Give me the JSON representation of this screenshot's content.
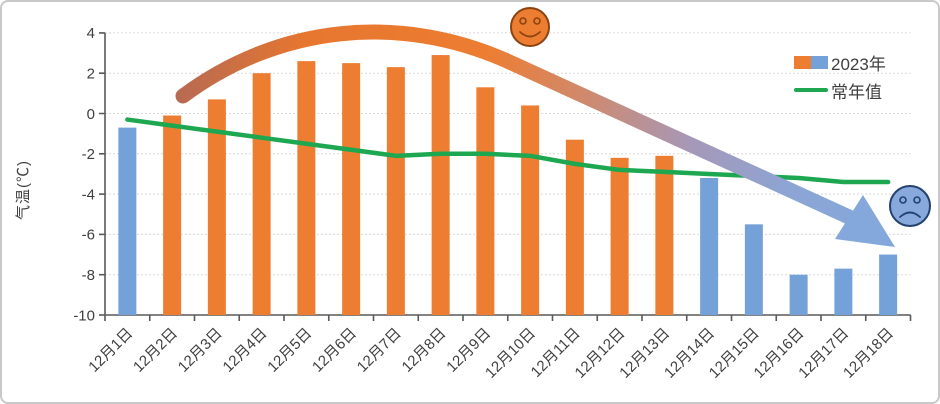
{
  "frame": {
    "background": "#ffffff",
    "border_color": "#c9c9c9"
  },
  "axis": {
    "label_color": "#3f3f3f",
    "line_color": "#595959",
    "grid_color": "#d9d9d9"
  },
  "chart_data": {
    "type": "bar",
    "title": "",
    "ylabel": "气温(℃)",
    "xlabel": "",
    "ylim": [
      -10,
      4
    ],
    "yticks": [
      4,
      2,
      0,
      -2,
      -4,
      -6,
      -8,
      -10
    ],
    "grid": true,
    "legend_position": "top-right",
    "categories": [
      "12月1日",
      "12月2日",
      "12月3日",
      "12月4日",
      "12月5日",
      "12月6日",
      "12月7日",
      "12月8日",
      "12月9日",
      "12月10日",
      "12月11日",
      "12月12日",
      "12月13日",
      "12月14日",
      "12月15日",
      "12月16日",
      "12月17日",
      "12月18日"
    ],
    "series": [
      {
        "name": "2023年",
        "type": "bar",
        "values": [
          -0.7,
          -0.1,
          0.7,
          2.0,
          2.6,
          2.5,
          2.3,
          2.9,
          1.3,
          0.4,
          -1.3,
          -2.2,
          -2.1,
          -3.2,
          -5.5,
          -8.0,
          -7.7,
          -7.0
        ],
        "point_colors": [
          "blue",
          "orange",
          "orange",
          "orange",
          "orange",
          "orange",
          "orange",
          "orange",
          "orange",
          "orange",
          "orange",
          "orange",
          "orange",
          "blue",
          "blue",
          "blue",
          "blue",
          "blue"
        ]
      },
      {
        "name": "常年值",
        "type": "line",
        "values": [
          -0.3,
          -0.6,
          -0.9,
          -1.2,
          -1.5,
          -1.8,
          -2.1,
          -2.0,
          -2.0,
          -2.1,
          -2.5,
          -2.8,
          -2.9,
          -3.0,
          -3.1,
          -3.2,
          -3.4,
          -3.4
        ],
        "color": "#1da750"
      }
    ],
    "colors": {
      "orange": "#ed7d31",
      "blue": "#74a1d8",
      "green": "#1da750"
    },
    "legend": [
      {
        "label": "2023年",
        "swatch": [
          "#ed7d31",
          "#74a1d8"
        ]
      },
      {
        "label": "常年值",
        "swatch": [
          "#1da750"
        ]
      }
    ],
    "annotations": {
      "trend_arrow": {
        "shape": "rise-then-fall arrow",
        "gradient": [
          "#b96b51",
          "#e7762f",
          "#ed7d31",
          "#ce8a70",
          "#a698b8",
          "#8ca5d5",
          "#84a8dc"
        ],
        "gradient_offsets": [
          0,
          0.15,
          0.4,
          0.55,
          0.7,
          0.85,
          1
        ]
      },
      "happy_face": {
        "fill": "#ed7d31",
        "stroke": "#8a4412"
      },
      "sad_face": {
        "fill": "#87a9db",
        "stroke": "#24426f"
      }
    }
  }
}
